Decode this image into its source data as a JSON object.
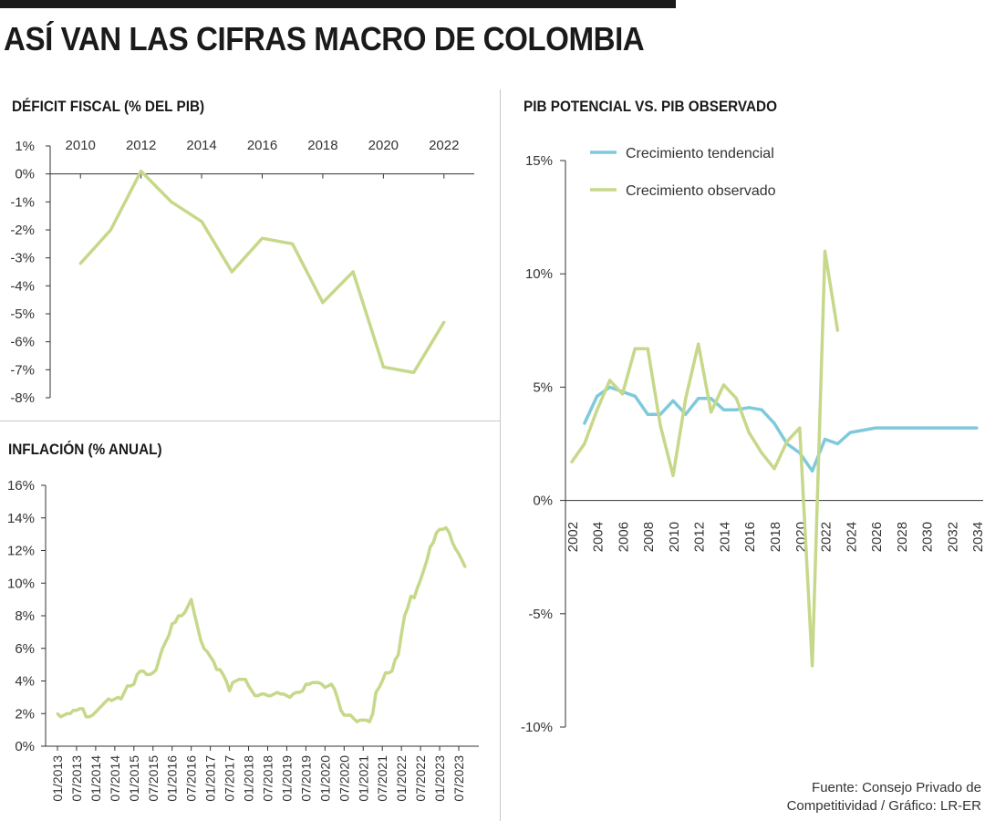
{
  "header": {
    "title": "ASÍ VAN LAS CIFRAS MACRO DE COLOMBIA"
  },
  "source": {
    "line1": "Fuente: Consejo Privado de",
    "line2": "Competitividad / Gráfico: LR-ER"
  },
  "colors": {
    "green": "#c6d88a",
    "blue": "#7fc9dc",
    "axis": "#333333"
  },
  "chart_data": [
    {
      "id": "deficit",
      "type": "line",
      "title": "DÉFICIT FISCAL (% DEL PIB)",
      "xlim": [
        2009,
        2023
      ],
      "ylim": [
        -8,
        1
      ],
      "x_ticks": [
        2010,
        2012,
        2014,
        2016,
        2018,
        2020,
        2022
      ],
      "y_ticks": [
        1,
        0,
        -1,
        -2,
        -3,
        -4,
        -5,
        -6,
        -7,
        -8
      ],
      "y_tick_labels": [
        "1%",
        "0%",
        "-1%",
        "-2%",
        "-3%",
        "-4%",
        "-5%",
        "-6%",
        "-7%",
        "-8%"
      ],
      "series": [
        {
          "color": "#c6d88a",
          "x": [
            2010,
            2011,
            2012,
            2013,
            2014,
            2015,
            2016,
            2017,
            2018,
            2019,
            2020,
            2021,
            2022
          ],
          "values": [
            -3.2,
            -2.0,
            0.1,
            -1.0,
            -1.7,
            -3.5,
            -2.3,
            -2.5,
            -4.6,
            -3.5,
            -6.9,
            -7.1,
            -5.3
          ]
        }
      ]
    },
    {
      "id": "inflacion",
      "type": "line",
      "title": "INFLACIÓN (% ANUAL)",
      "ylim": [
        0,
        16
      ],
      "y_ticks": [
        16,
        14,
        12,
        10,
        8,
        6,
        4,
        2,
        0
      ],
      "y_tick_labels": [
        "16%",
        "14%",
        "12%",
        "10%",
        "8%",
        "6%",
        "4%",
        "2%",
        "0%"
      ],
      "x_tick_labels": [
        "01/2013",
        "07/2013",
        "01/2014",
        "07/2014",
        "01/2015",
        "07/2015",
        "01/2016",
        "07/2016",
        "01/2017",
        "07/2017",
        "01/2018",
        "07/2018",
        "01/2019",
        "07/2019",
        "01/2020",
        "07/2020",
        "01/2021",
        "07/2021",
        "01/2022",
        "07/2022",
        "01/2023",
        "07/2023"
      ],
      "series": [
        {
          "color": "#c6d88a",
          "start": "01/2013",
          "monthly_values": [
            2.0,
            1.8,
            1.9,
            2.0,
            2.0,
            2.2,
            2.2,
            2.3,
            2.3,
            1.8,
            1.8,
            1.9,
            2.1,
            2.3,
            2.5,
            2.7,
            2.9,
            2.8,
            2.9,
            3.0,
            2.9,
            3.3,
            3.7,
            3.7,
            3.8,
            4.4,
            4.6,
            4.6,
            4.4,
            4.4,
            4.5,
            4.7,
            5.4,
            6.0,
            6.4,
            6.8,
            7.5,
            7.6,
            8.0,
            8.0,
            8.2,
            8.6,
            9.0,
            8.1,
            7.3,
            6.5,
            6.0,
            5.8,
            5.5,
            5.2,
            4.7,
            4.7,
            4.4,
            4.0,
            3.4,
            3.9,
            4.0,
            4.1,
            4.1,
            4.1,
            3.7,
            3.4,
            3.1,
            3.1,
            3.2,
            3.2,
            3.1,
            3.1,
            3.2,
            3.3,
            3.2,
            3.2,
            3.1,
            3.0,
            3.2,
            3.3,
            3.3,
            3.4,
            3.8,
            3.8,
            3.9,
            3.9,
            3.9,
            3.8,
            3.6,
            3.7,
            3.8,
            3.5,
            2.9,
            2.2,
            1.9,
            1.9,
            1.9,
            1.7,
            1.5,
            1.6,
            1.6,
            1.6,
            1.5,
            2.0,
            3.3,
            3.6,
            4.0,
            4.5,
            4.5,
            4.6,
            5.3,
            5.6,
            6.9,
            8.0,
            8.5,
            9.2,
            9.1,
            9.7,
            10.2,
            10.8,
            11.4,
            12.2,
            12.5,
            13.1,
            13.3,
            13.3,
            13.4,
            13.1,
            12.5,
            12.1,
            11.8,
            11.4,
            11.0
          ]
        }
      ]
    },
    {
      "id": "pib",
      "type": "line",
      "title": "PIB POTENCIAL VS. PIB OBSERVADO",
      "xlim": [
        2001.5,
        2034.5
      ],
      "ylim": [
        -10,
        15
      ],
      "x_ticks": [
        2002,
        2004,
        2006,
        2008,
        2010,
        2012,
        2014,
        2016,
        2018,
        2020,
        2022,
        2024,
        2026,
        2028,
        2030,
        2032,
        2034
      ],
      "y_ticks": [
        15,
        10,
        5,
        0,
        -5,
        -10
      ],
      "y_tick_labels": [
        "15%",
        "10%",
        "5%",
        "0%",
        "-5%",
        "-10%"
      ],
      "series": [
        {
          "name": "Crecimiento tendencial",
          "color": "#7fc9dc",
          "x": [
            2003,
            2004,
            2005,
            2006,
            2007,
            2008,
            2009,
            2010,
            2011,
            2012,
            2013,
            2014,
            2015,
            2016,
            2017,
            2018,
            2019,
            2020,
            2021,
            2022,
            2023,
            2024,
            2025,
            2026,
            2027,
            2028,
            2029,
            2030,
            2031,
            2032,
            2033,
            2034
          ],
          "values": [
            3.4,
            4.6,
            5.0,
            4.8,
            4.6,
            3.8,
            3.8,
            4.4,
            3.8,
            4.5,
            4.5,
            4.0,
            4.0,
            4.1,
            4.0,
            3.4,
            2.5,
            2.1,
            1.3,
            2.7,
            2.5,
            3.0,
            3.1,
            3.2,
            3.2,
            3.2,
            3.2,
            3.2,
            3.2,
            3.2,
            3.2,
            3.2
          ]
        },
        {
          "name": "Crecimiento observado",
          "color": "#c6d88a",
          "x": [
            2002,
            2003,
            2004,
            2005,
            2006,
            2007,
            2008,
            2009,
            2010,
            2011,
            2012,
            2013,
            2014,
            2015,
            2016,
            2017,
            2018,
            2019,
            2020,
            2021,
            2022,
            2023
          ],
          "values": [
            1.7,
            2.5,
            4.0,
            5.3,
            4.7,
            6.7,
            6.7,
            3.3,
            1.1,
            4.5,
            6.9,
            3.9,
            5.1,
            4.5,
            3.0,
            2.1,
            1.4,
            2.6,
            3.2,
            -7.3,
            11.0,
            7.5
          ]
        }
      ],
      "legend": "top-left"
    }
  ]
}
